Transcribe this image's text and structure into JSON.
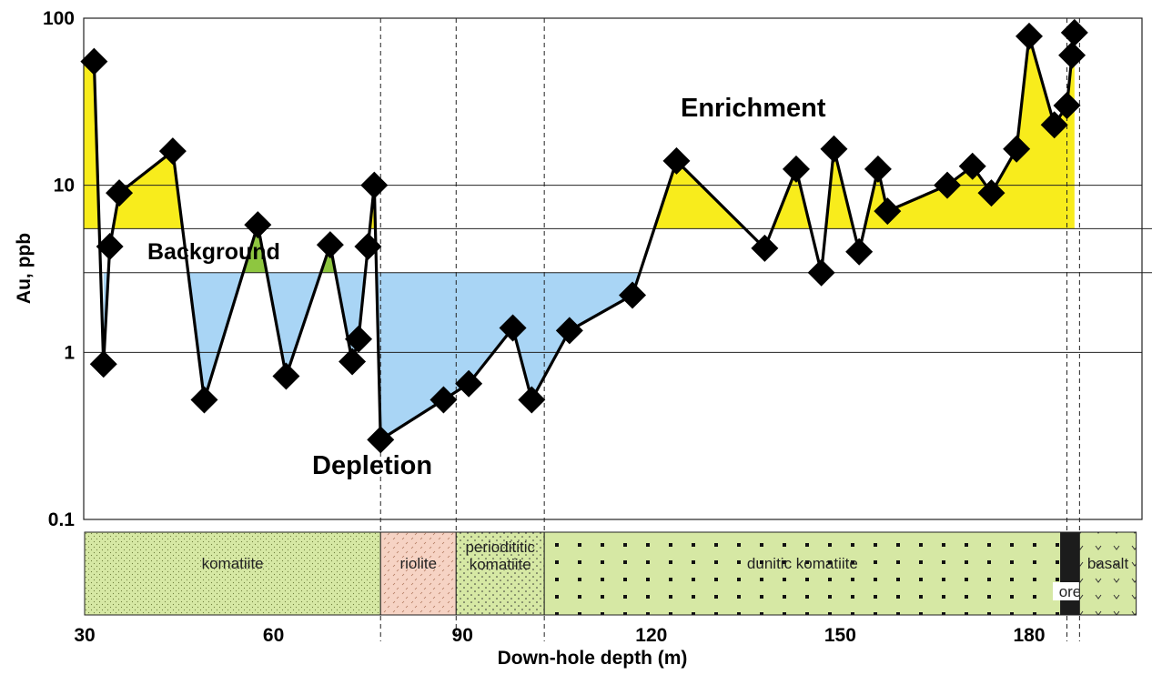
{
  "chart_data": {
    "type": "line",
    "xlabel": "Down-hole depth (m)",
    "ylabel": "Au, ppb",
    "y_scale": "log",
    "xlim": [
      30,
      197
    ],
    "ylim": [
      0.1,
      100
    ],
    "x_ticks": [
      "30",
      "60",
      "90",
      "120",
      "150",
      "180"
    ],
    "y_ticks": [
      "100",
      "10",
      "1",
      "0.1"
    ],
    "gridlines_y": [
      100,
      10,
      5.5,
      3,
      1
    ],
    "background_band": [
      3,
      5.5
    ],
    "annotations": {
      "enrichment": "Enrichment",
      "background": "Background",
      "depletion": "Depletion"
    },
    "colors": {
      "enrichment": "#f8ec1c",
      "depletion": "#a9d5f5",
      "background_peak": "#8ec640",
      "line": "#000000",
      "marker": "#000000",
      "komatiite": "#d6e8a4",
      "riolite": "#f6d3c4",
      "ore": "#1c1c1c"
    },
    "series": [
      {
        "x": [
          31.5,
          33.0,
          34.0,
          35.5,
          44.0,
          49.0,
          57.5,
          62.0,
          69.0,
          72.5,
          73.5,
          75.0,
          76.0,
          77.0,
          87.0,
          91.0,
          98.0,
          101.0,
          107.0,
          117.0,
          124.0,
          138.0,
          143.0,
          147.0,
          149.0,
          153.0,
          156.0,
          157.5,
          167.0,
          171.0,
          174.0,
          178.0,
          180.0,
          184.0,
          186.0,
          186.8,
          187.2
        ],
        "y": [
          55,
          0.85,
          4.3,
          9,
          16,
          0.52,
          5.8,
          0.72,
          4.4,
          0.88,
          1.2,
          4.3,
          10,
          0.3,
          0.52,
          0.65,
          1.4,
          0.52,
          1.35,
          2.2,
          14,
          4.2,
          12.5,
          3,
          16.5,
          4,
          12.5,
          7,
          10,
          13,
          9,
          16.5,
          78,
          23,
          30,
          60,
          82
        ]
      }
    ],
    "lithology": [
      {
        "label": "komatiite",
        "from": 30,
        "to": 77
      },
      {
        "label": "riolite",
        "from": 77,
        "to": 89
      },
      {
        "label": "periodititic komatiite",
        "from": 89,
        "to": 103
      },
      {
        "label": "dunitic komatiite",
        "from": 103,
        "to": 185
      },
      {
        "label": "ore",
        "from": 185,
        "to": 188
      },
      {
        "label": "basalt",
        "from": 188,
        "to": 197
      }
    ],
    "contacts_x": [
      77,
      89,
      103,
      186,
      188
    ],
    "grid": false,
    "legend": "none"
  }
}
